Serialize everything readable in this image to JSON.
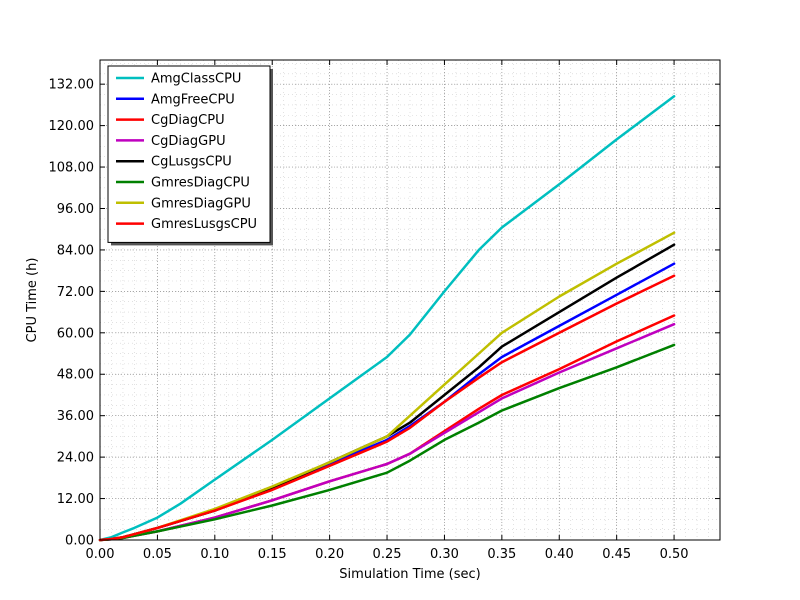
{
  "chart_data": {
    "type": "line",
    "title": "",
    "xlabel": "Simulation Time (sec)",
    "ylabel": "CPU Time (h)",
    "xlim": [
      0,
      0.54
    ],
    "ylim": [
      0,
      139
    ],
    "x_ticks": [
      "0.00",
      "0.05",
      "0.10",
      "0.15",
      "0.20",
      "0.25",
      "0.30",
      "0.35",
      "0.40",
      "0.45",
      "0.50"
    ],
    "y_ticks": [
      "0.00",
      "12.00",
      "24.00",
      "36.00",
      "48.00",
      "60.00",
      "72.00",
      "84.00",
      "96.00",
      "108.00",
      "120.00",
      "132.00"
    ],
    "grid": true,
    "legend_position": "upper-left",
    "series": [
      {
        "name": "AmgClassCPU",
        "color": "#00bfbf",
        "x": [
          0,
          0.01,
          0.02,
          0.03,
          0.05,
          0.07,
          0.1,
          0.15,
          0.2,
          0.25,
          0.27,
          0.3,
          0.33,
          0.35,
          0.4,
          0.45,
          0.5
        ],
        "y": [
          0,
          0.8,
          2.2,
          3.5,
          6.5,
          10.5,
          17.5,
          29,
          41,
          53,
          59.5,
          72,
          84,
          90.5,
          103,
          116,
          128.5
        ]
      },
      {
        "name": "AmgFreeCPU",
        "color": "#0000ff",
        "x": [
          0,
          0.01,
          0.02,
          0.05,
          0.1,
          0.15,
          0.2,
          0.25,
          0.27,
          0.3,
          0.33,
          0.35,
          0.4,
          0.45,
          0.5
        ],
        "y": [
          0,
          0.3,
          0.8,
          3.5,
          8.5,
          15,
          22,
          29,
          33,
          40,
          48,
          53,
          62,
          71,
          80
        ]
      },
      {
        "name": "CgDiagCPU",
        "color": "#ff0000",
        "x": [
          0,
          0.01,
          0.02,
          0.05,
          0.1,
          0.15,
          0.2,
          0.25,
          0.27,
          0.3,
          0.33,
          0.35,
          0.4,
          0.45,
          0.5
        ],
        "y": [
          0,
          0.2,
          0.6,
          2.5,
          6.5,
          11.5,
          17,
          22,
          25,
          31.5,
          38,
          42,
          49.5,
          57.5,
          65
        ]
      },
      {
        "name": "CgDiagGPU",
        "color": "#bf00bf",
        "x": [
          0,
          0.01,
          0.02,
          0.05,
          0.1,
          0.15,
          0.2,
          0.25,
          0.27,
          0.3,
          0.33,
          0.35,
          0.4,
          0.45,
          0.5
        ],
        "y": [
          0,
          0.2,
          0.6,
          2.5,
          6.5,
          11.5,
          17,
          22,
          25,
          31,
          37,
          41,
          48.5,
          55.5,
          62.5
        ]
      },
      {
        "name": "CgLusgsCPU",
        "color": "#000000",
        "x": [
          0,
          0.01,
          0.02,
          0.05,
          0.1,
          0.15,
          0.2,
          0.25,
          0.27,
          0.3,
          0.33,
          0.35,
          0.4,
          0.45,
          0.5
        ],
        "y": [
          0,
          0.3,
          0.8,
          3.5,
          8.5,
          15,
          22.5,
          30,
          34,
          42,
          50,
          56,
          66,
          76,
          85.5
        ]
      },
      {
        "name": "GmresDiagCPU",
        "color": "#008000",
        "x": [
          0,
          0.01,
          0.02,
          0.05,
          0.1,
          0.15,
          0.2,
          0.25,
          0.27,
          0.3,
          0.33,
          0.35,
          0.4,
          0.45,
          0.5
        ],
        "y": [
          0,
          0.2,
          0.6,
          2.5,
          6,
          10,
          14.5,
          19.5,
          23,
          29,
          34,
          37.5,
          44,
          50,
          56.5
        ]
      },
      {
        "name": "GmresDiagGPU",
        "color": "#bfbf00",
        "x": [
          0,
          0.01,
          0.02,
          0.05,
          0.1,
          0.15,
          0.2,
          0.25,
          0.27,
          0.3,
          0.33,
          0.35,
          0.4,
          0.45,
          0.5
        ],
        "y": [
          0,
          0.3,
          0.8,
          3.5,
          9,
          15.5,
          22.5,
          30,
          36,
          45,
          54,
          60,
          70.5,
          80,
          89
        ]
      },
      {
        "name": "GmresLusgsCPU",
        "color": "#ff0000",
        "x": [
          0,
          0.01,
          0.02,
          0.05,
          0.1,
          0.15,
          0.2,
          0.25,
          0.27,
          0.3,
          0.33,
          0.35,
          0.4,
          0.45,
          0.5
        ],
        "y": [
          0,
          0.3,
          0.8,
          3.5,
          8.5,
          14.5,
          21.5,
          28.5,
          32.5,
          40,
          47,
          51.5,
          60,
          68.5,
          76.5
        ]
      }
    ]
  }
}
